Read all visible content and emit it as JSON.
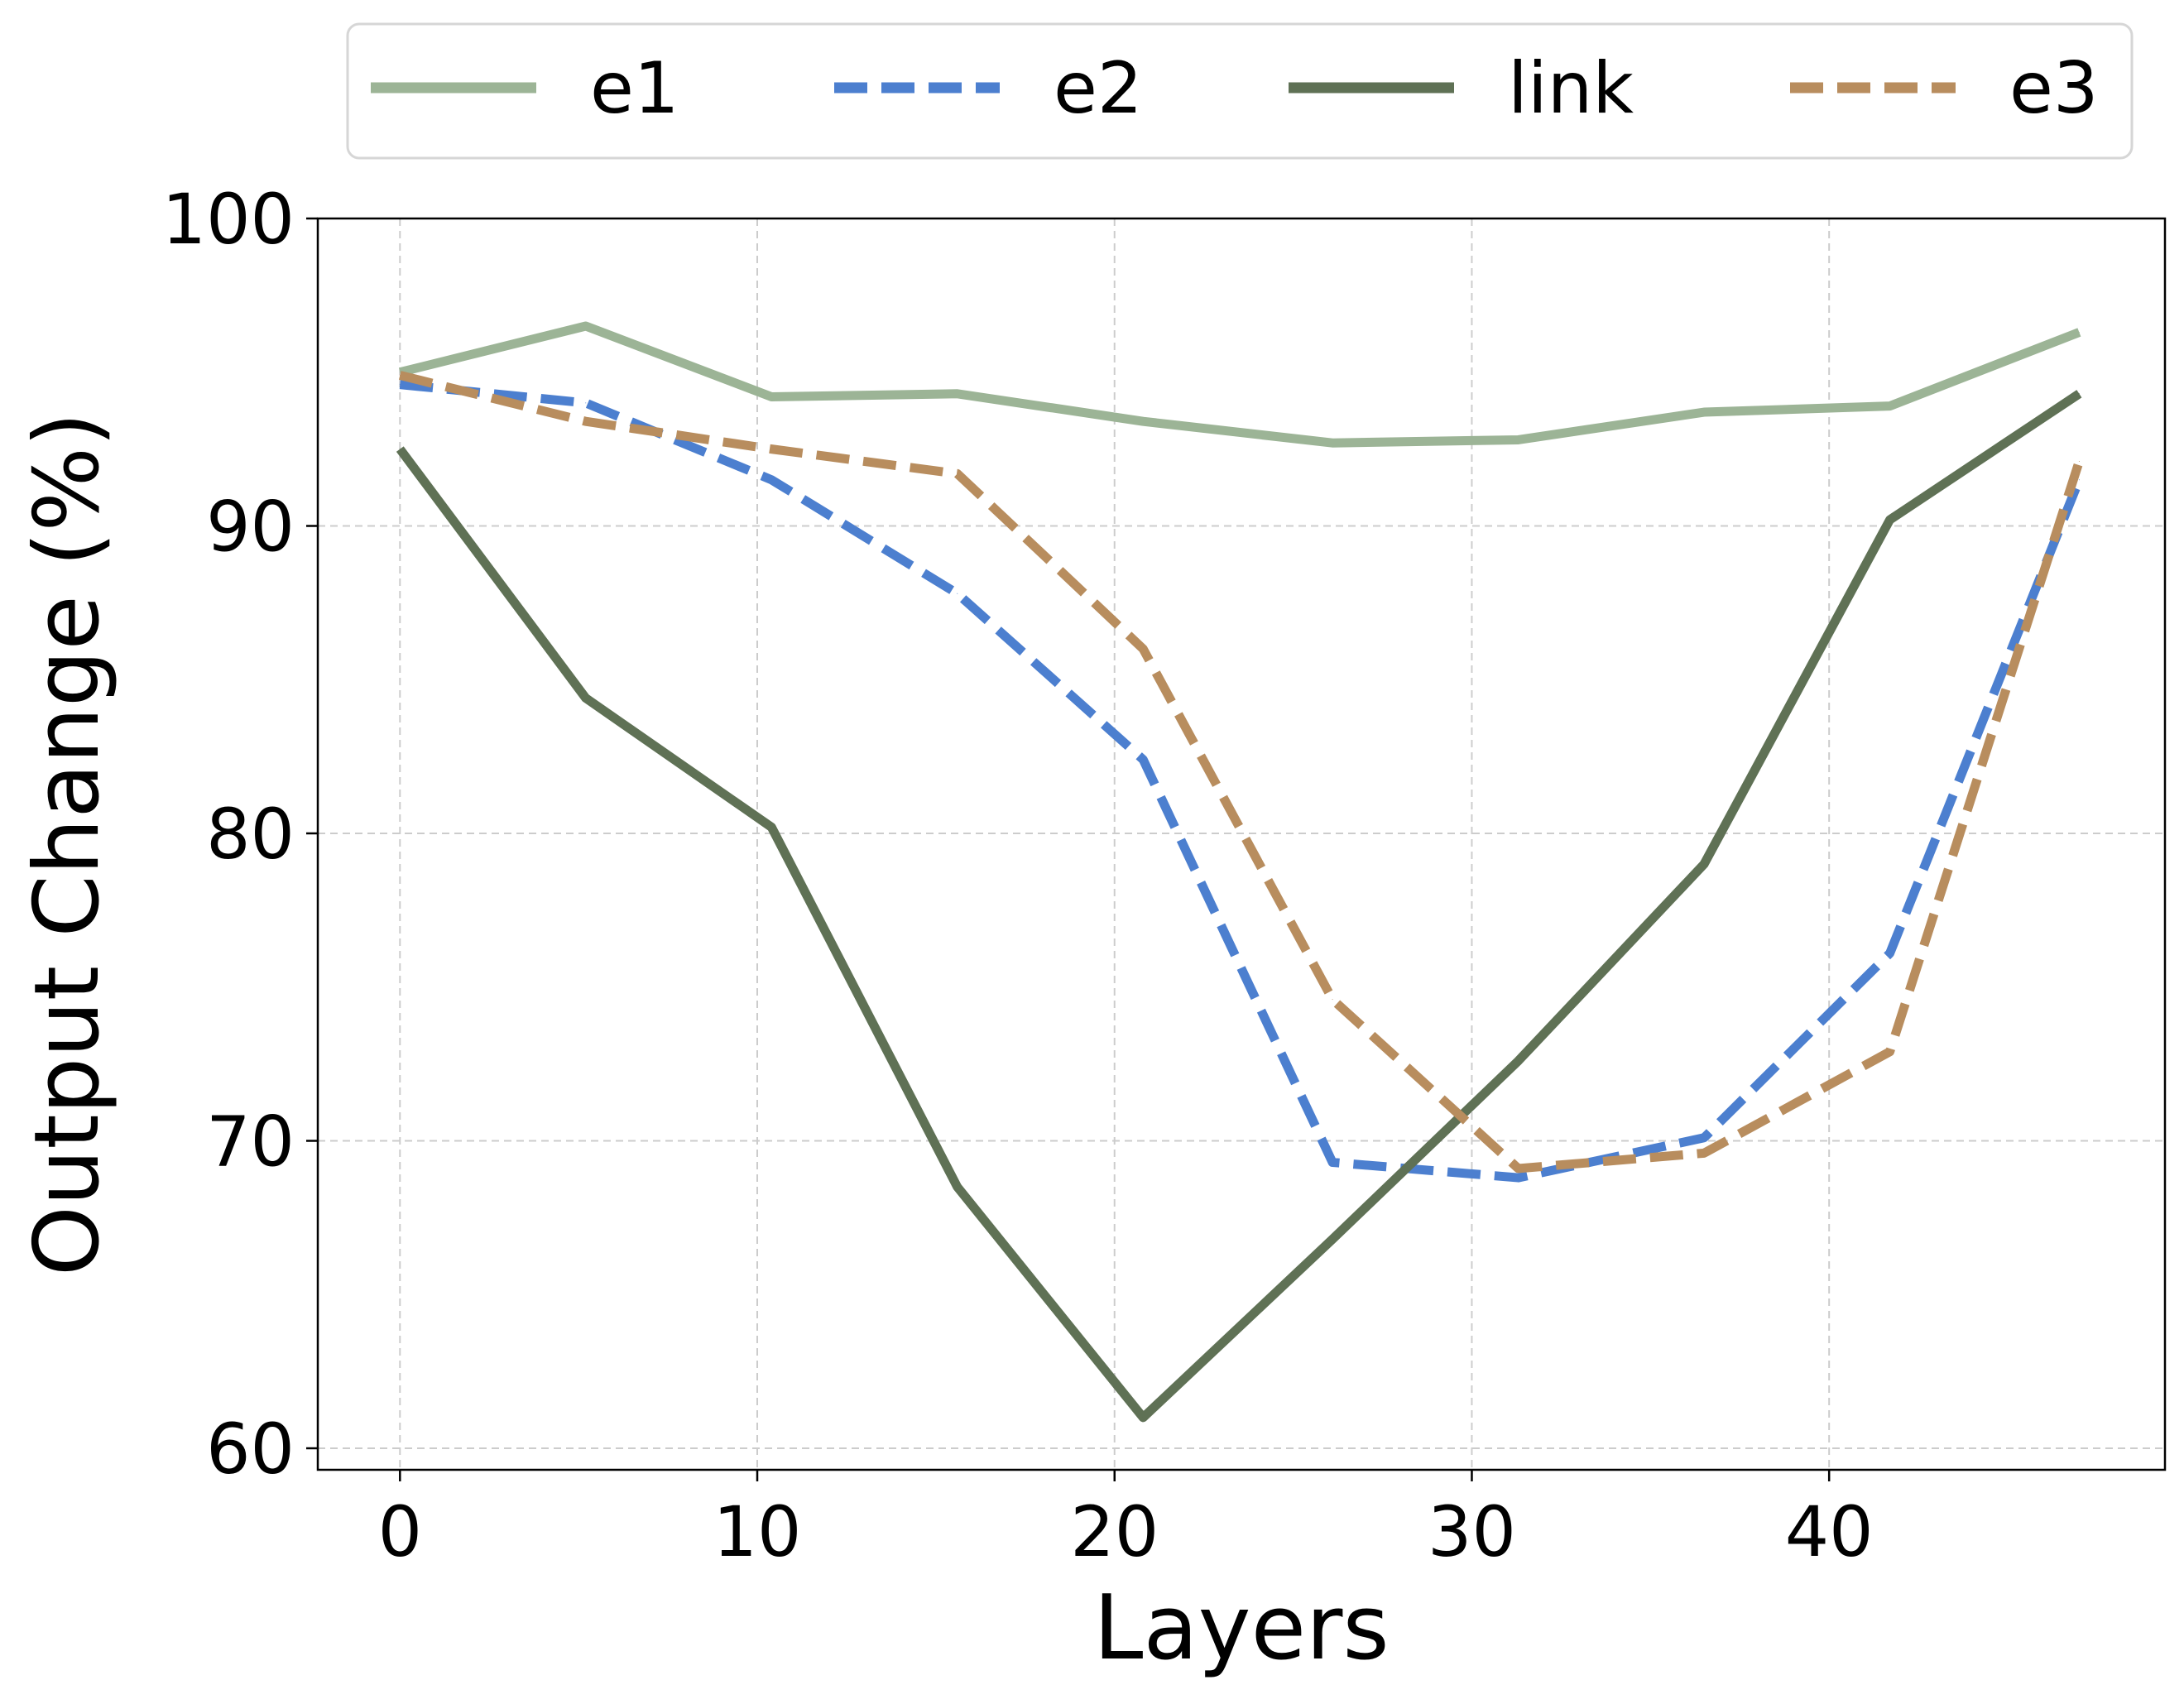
{
  "chart_data": {
    "type": "line",
    "xlabel": "Layers",
    "ylabel": "Output Change (%)",
    "xlim": [
      -2.3,
      49.4
    ],
    "ylim": [
      59.3,
      100
    ],
    "xticks": [
      0,
      10,
      20,
      30,
      40
    ],
    "yticks": [
      60,
      70,
      80,
      90,
      100
    ],
    "grid": true,
    "legend": "top, outside plot, horizontal",
    "x": [
      0,
      5.2,
      10.4,
      15.6,
      20.8,
      26.1,
      31.3,
      36.5,
      41.7,
      47
    ],
    "series": [
      {
        "name": "e1",
        "color": "#9cb496",
        "dash": "solid",
        "values": [
          95.0,
          96.5,
          94.2,
          94.3,
          93.4,
          92.7,
          92.8,
          93.7,
          93.9,
          96.3
        ]
      },
      {
        "name": "e2",
        "color": "#4c7fcf",
        "dash": "dashed",
        "values": [
          94.6,
          94.0,
          91.5,
          87.8,
          82.4,
          69.3,
          68.8,
          70.1,
          76.1,
          91.5
        ]
      },
      {
        "name": "link",
        "color": "#5f7155",
        "dash": "solid",
        "values": [
          92.5,
          84.4,
          80.2,
          68.5,
          61.0,
          66.8,
          72.6,
          79.0,
          90.2,
          94.3
        ]
      },
      {
        "name": "e3",
        "color": "#b88d5e",
        "dash": "dashed",
        "values": [
          94.9,
          93.4,
          92.5,
          91.7,
          86.0,
          74.6,
          69.1,
          69.6,
          72.9,
          92.1
        ]
      }
    ]
  }
}
